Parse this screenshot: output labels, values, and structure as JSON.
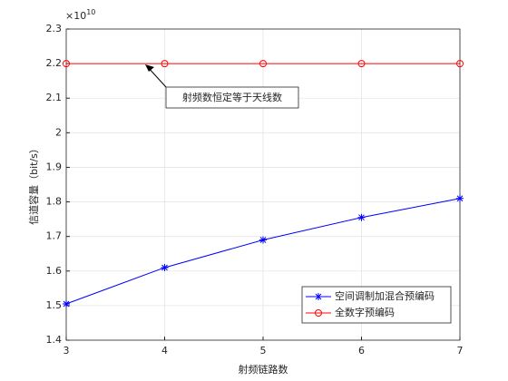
{
  "chart_data": {
    "type": "line",
    "x_label": "射频链路数",
    "y_label": "信道容量（bit/s）",
    "y_multiplier_label": "×10",
    "y_multiplier_exponent": "10",
    "x": [
      3,
      4,
      5,
      6,
      7
    ],
    "series": [
      {
        "name": "空间调制加混合预编码",
        "color": "#0000ff",
        "marker": "star",
        "values": [
          1.505,
          1.61,
          1.69,
          1.755,
          1.81
        ]
      },
      {
        "name": "全数字预编码",
        "color": "#ff0000",
        "marker": "circle",
        "values": [
          2.2,
          2.2,
          2.2,
          2.2,
          2.2
        ]
      }
    ],
    "xlim": [
      3,
      7
    ],
    "xticks": [
      3,
      4,
      5,
      6,
      7
    ],
    "ylim": [
      1.4,
      2.3
    ],
    "yticks": [
      1.4,
      1.5,
      1.6,
      1.7,
      1.8,
      1.9,
      2,
      2.1,
      2.2,
      2.3
    ],
    "grid": true,
    "legend_position": "lower-right",
    "annotation": "射频数恒定等于天线数"
  }
}
